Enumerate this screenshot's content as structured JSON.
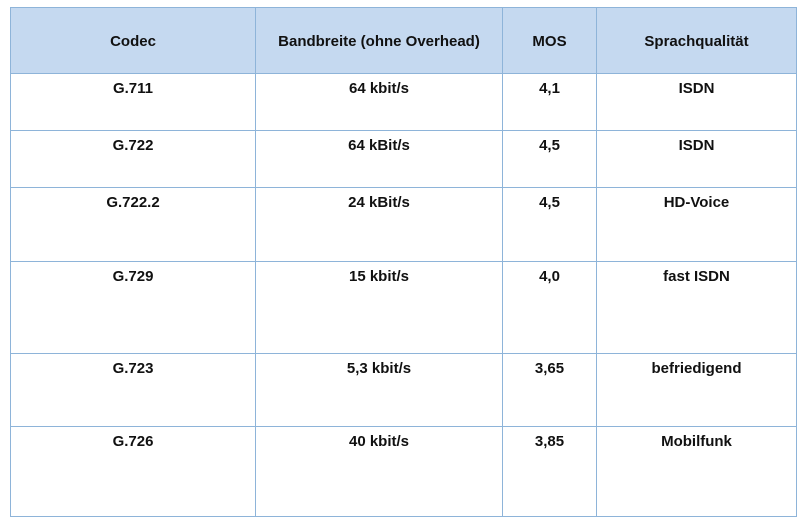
{
  "table": {
    "headers": {
      "codec": "Codec",
      "bandwidth": "Bandbreite (ohne Overhead)",
      "mos": "MOS",
      "quality": "Sprachqualität"
    },
    "rows": [
      {
        "codec": "G.711",
        "bandwidth": "64 kbit/s",
        "mos": "4,1",
        "quality": "ISDN"
      },
      {
        "codec": "G.722",
        "bandwidth": "64 kBit/s",
        "mos": "4,5",
        "quality": "ISDN"
      },
      {
        "codec": "G.722.2",
        "bandwidth": "24 kBit/s",
        "mos": "4,5",
        "quality": "HD-Voice"
      },
      {
        "codec": "G.729",
        "bandwidth": "15 kbit/s",
        "mos": "4,0",
        "quality": "fast ISDN"
      },
      {
        "codec": "G.723",
        "bandwidth": "5,3 kbit/s",
        "mos": "3,65",
        "quality": "befriedigend"
      },
      {
        "codec": "G.726",
        "bandwidth": "40 kbit/s",
        "mos": "3,85",
        "quality": "Mobilfunk"
      }
    ]
  },
  "colors": {
    "header_background": "#c5d9f0",
    "border": "#8eb4d9",
    "text": "#111111"
  }
}
